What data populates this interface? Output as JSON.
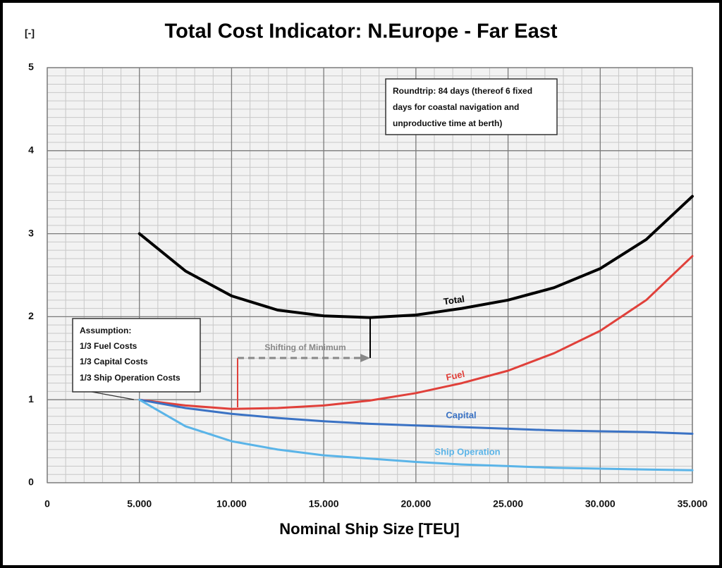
{
  "chart_data": {
    "type": "line",
    "title": "Total Cost Indicator: N.Europe - Far East",
    "y_label": "[-]",
    "x_label": "Nominal Ship Size [TEU]",
    "x": [
      5000,
      7500,
      10000,
      12500,
      15000,
      17500,
      20000,
      22500,
      25000,
      27500,
      30000,
      32500,
      35000
    ],
    "series": [
      {
        "name": "Total",
        "color": "#000000",
        "values": [
          3.0,
          2.55,
          2.25,
          2.08,
          2.01,
          1.99,
          2.02,
          2.1,
          2.2,
          2.35,
          2.58,
          2.93,
          3.45
        ]
      },
      {
        "name": "Fuel",
        "color": "#e0403a",
        "values": [
          1.0,
          0.93,
          0.89,
          0.9,
          0.93,
          0.99,
          1.08,
          1.2,
          1.35,
          1.56,
          1.83,
          2.2,
          2.73
        ]
      },
      {
        "name": "Capital",
        "color": "#3a72c4",
        "values": [
          1.0,
          0.9,
          0.83,
          0.78,
          0.74,
          0.71,
          0.69,
          0.67,
          0.65,
          0.63,
          0.62,
          0.61,
          0.59
        ]
      },
      {
        "name": "Ship Operation",
        "color": "#5ab4e8",
        "values": [
          1.0,
          0.68,
          0.5,
          0.4,
          0.33,
          0.29,
          0.25,
          0.22,
          0.2,
          0.18,
          0.17,
          0.16,
          0.15
        ]
      }
    ],
    "xlim": [
      0,
      35000
    ],
    "xticks": [
      0,
      {
        "value": 5000,
        "label": "5.000"
      },
      {
        "value": 10000,
        "label": "10.000"
      },
      {
        "value": 15000,
        "label": "15.000"
      },
      {
        "value": 20000,
        "label": "20.000"
      },
      {
        "value": 25000,
        "label": "25.000"
      },
      {
        "value": 30000,
        "label": "30.000"
      },
      {
        "value": 35000,
        "label": "35.000"
      }
    ],
    "ylim": [
      0,
      5
    ],
    "yticks": [
      0,
      1,
      2,
      3,
      4,
      5
    ],
    "grid": true,
    "minor_grid": true,
    "annotations": {
      "roundtrip": [
        "Roundtrip: 84 days (thereof 6 fixed",
        "days for coastal navigation and",
        "unproductive time at berth)"
      ],
      "assumption": [
        "Assumption:",
        "1/3 Fuel Costs",
        "1/3 Capital Costs",
        "1/3 Ship Operation Costs"
      ],
      "shift": "Shifting of Minimum"
    }
  }
}
